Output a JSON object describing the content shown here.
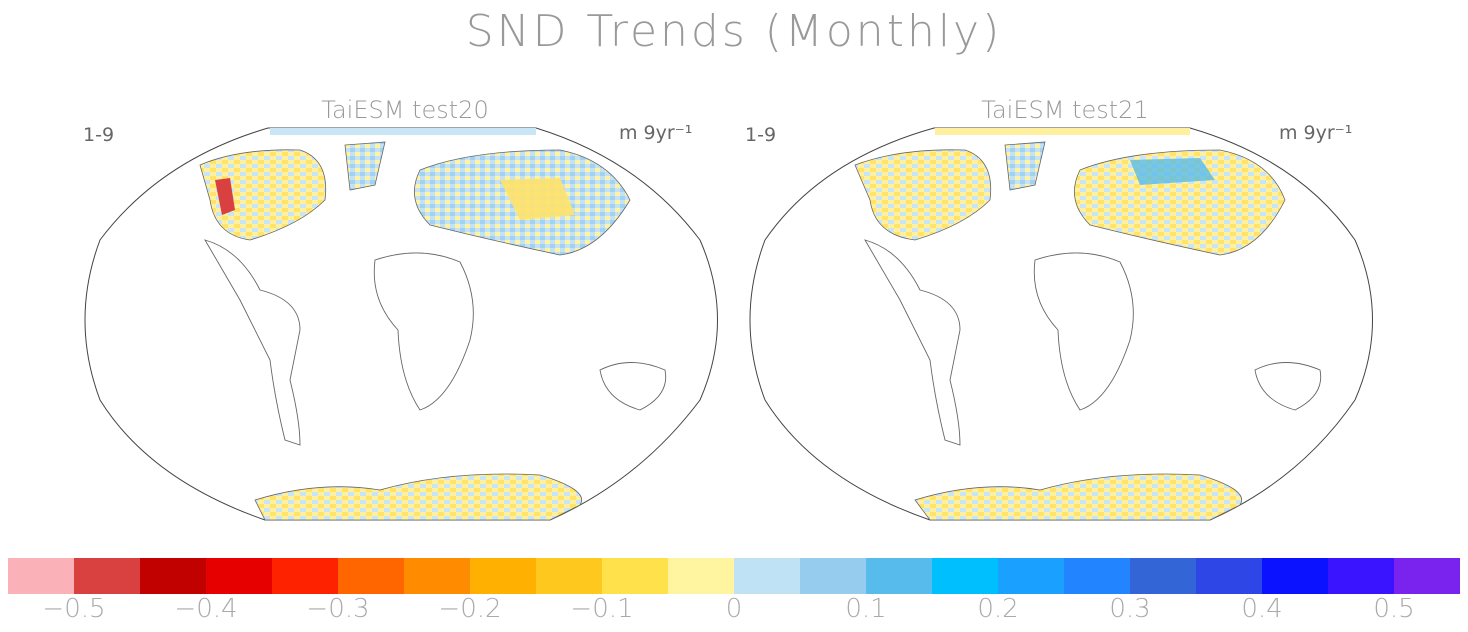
{
  "title": "SND Trends (Monthly)",
  "panels": [
    {
      "title": "TaiESM test20",
      "left_label": "1-9",
      "unit": "m 9yr⁻¹"
    },
    {
      "title": "TaiESM test21",
      "left_label": "1-9",
      "unit": "m 9yr⁻¹"
    }
  ],
  "colorbar": {
    "colors": [
      "#fbb1b8",
      "#d94040",
      "#c10000",
      "#e60000",
      "#ff2200",
      "#ff6600",
      "#ff8c00",
      "#ffb000",
      "#ffc81e",
      "#ffe14c",
      "#fff5a0",
      "#bfe3f5",
      "#96cdee",
      "#57bbec",
      "#00bfff",
      "#1aa0ff",
      "#2384ff",
      "#3465d6",
      "#2e46e6",
      "#0a12ff",
      "#3a14ff",
      "#7a22ee"
    ],
    "tick_labels": [
      "−0.5",
      "−0.4",
      "−0.3",
      "−0.2",
      "−0.1",
      "0",
      "0.1",
      "0.2",
      "0.3",
      "0.4",
      "0.5"
    ]
  }
}
